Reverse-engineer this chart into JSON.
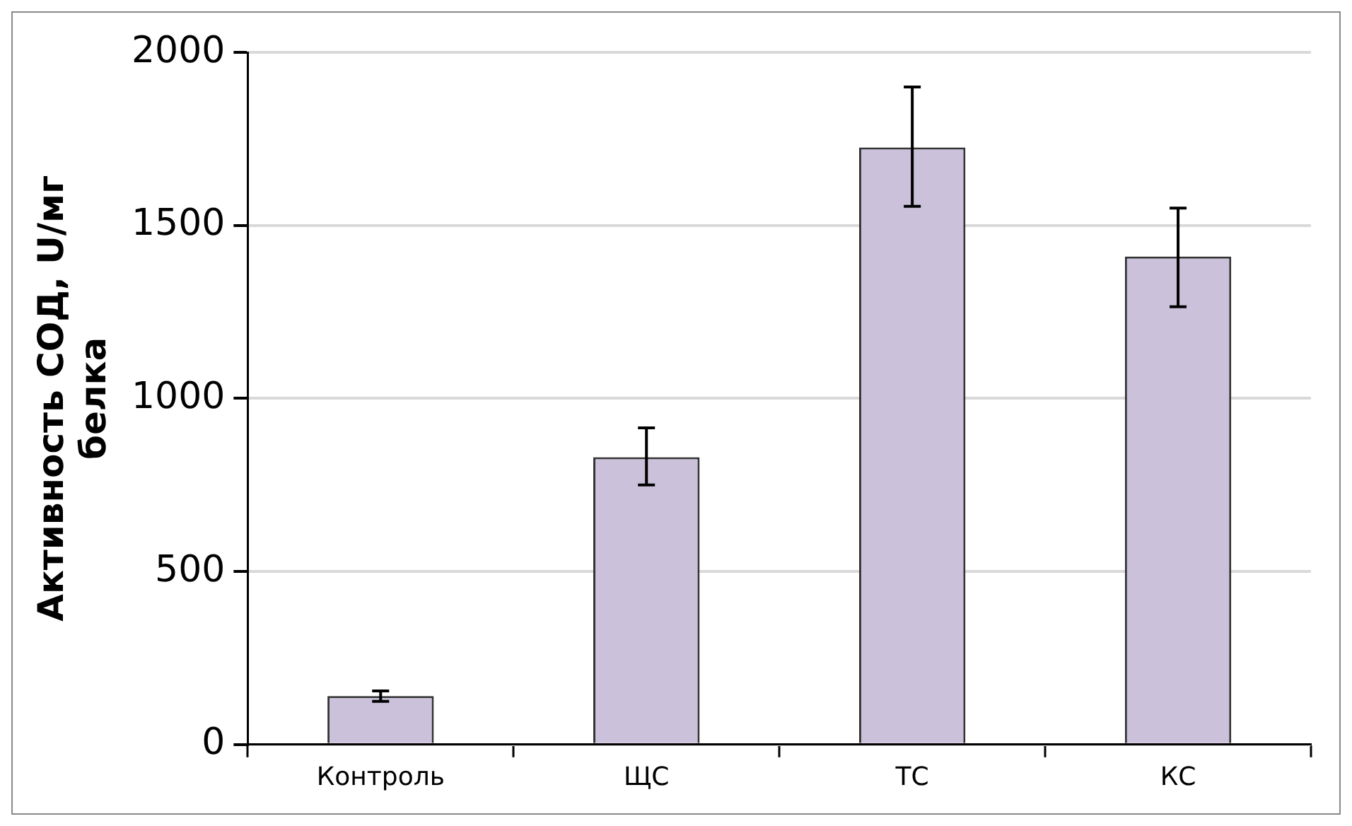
{
  "chart_data": {
    "type": "bar",
    "ylabel": "Активность СОД, U/мг белка",
    "categories": [
      "Контроль",
      "ЩС",
      "ТС",
      "КС"
    ],
    "values": [
      140,
      830,
      1725,
      1410
    ],
    "errors": [
      [
        125,
        155
      ],
      [
        750,
        915
      ],
      [
        1555,
        1900
      ],
      [
        1265,
        1550
      ]
    ],
    "color": "#cbc1db",
    "ylim": [
      0,
      2000
    ],
    "yticks": [
      0,
      500,
      1000,
      1500,
      2000
    ],
    "grid": "y",
    "legend": false
  }
}
